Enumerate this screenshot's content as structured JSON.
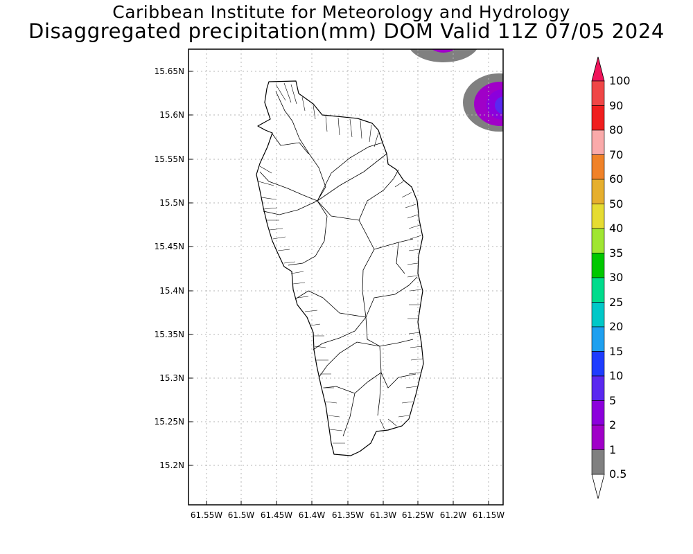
{
  "titles": {
    "line1": "Caribbean Institute for Meteorology and Hydrology",
    "line2": "Disaggregated precipitation(mm) DOM Valid 11Z 07/05 2024"
  },
  "map": {
    "lat_ticks": [
      "15.65N",
      "15.6N",
      "15.55N",
      "15.5N",
      "15.45N",
      "15.4N",
      "15.35N",
      "15.3N",
      "15.25N",
      "15.2N"
    ],
    "lon_ticks": [
      "61.55W",
      "61.5W",
      "61.45W",
      "61.4W",
      "61.35W",
      "61.3W",
      "61.25W",
      "61.2W",
      "61.15W"
    ],
    "grid": true
  },
  "colorbar": {
    "levels": [
      "100",
      "90",
      "80",
      "70",
      "60",
      "50",
      "40",
      "35",
      "30",
      "25",
      "20",
      "15",
      "10",
      "5",
      "2",
      "1",
      "0.5"
    ],
    "colors": [
      "#f0145a",
      "#f04646",
      "#f01e1e",
      "#faaaaa",
      "#f08228",
      "#e6af2d",
      "#e6dc32",
      "#a0e632",
      "#00c800",
      "#00dc8c",
      "#00c8c8",
      "#1ea0f0",
      "#1e3cff",
      "#5a28f0",
      "#8c00dc",
      "#a000c8",
      "#808080"
    ]
  },
  "precip_colors": {
    "gray": "#808080",
    "purple": "#a000c8",
    "violet": "#8c00dc",
    "blue_violet": "#5a28f0"
  }
}
